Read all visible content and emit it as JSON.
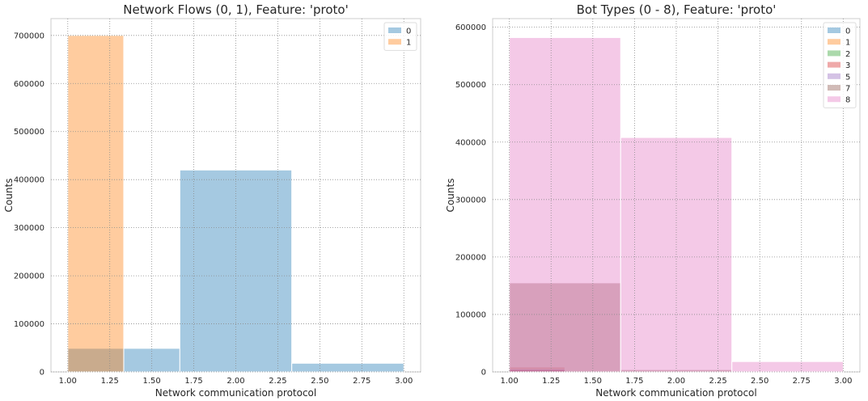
{
  "chart_data": [
    {
      "type": "bar",
      "title": "Network Flows (0, 1), Feature: 'proto'",
      "xlabel": "Network communication protocol",
      "ylabel": "Counts",
      "xlim": [
        0.9,
        3.1
      ],
      "ylim": [
        0,
        735000
      ],
      "xticks": [
        1.0,
        1.25,
        1.5,
        1.75,
        2.0,
        2.25,
        2.5,
        2.75,
        3.0
      ],
      "xtick_labels": [
        "1.00",
        "1.25",
        "1.50",
        "1.75",
        "2.00",
        "2.25",
        "2.50",
        "2.75",
        "3.00"
      ],
      "yticks": [
        0,
        100000,
        200000,
        300000,
        400000,
        500000,
        600000,
        700000
      ],
      "ytick_labels": [
        "0",
        "100000",
        "200000",
        "300000",
        "400000",
        "500000",
        "600000",
        "700000"
      ],
      "grid": true,
      "legend_position": "top-right",
      "bin_edges": [
        1.0,
        1.333,
        1.667,
        2.333,
        3.0
      ],
      "series": [
        {
          "name": "0",
          "color": "#1f77b4",
          "bins": [
            [
              1.0,
              1.333,
              49000
            ],
            [
              1.333,
              1.667,
              49000
            ],
            [
              1.667,
              2.333,
              420000
            ],
            [
              2.333,
              3.0,
              18000
            ]
          ]
        },
        {
          "name": "1",
          "color": "#ff7f0e",
          "bins": [
            [
              1.0,
              1.333,
              700000
            ]
          ]
        }
      ]
    },
    {
      "type": "bar",
      "title": "Bot Types (0 - 8), Feature: 'proto'",
      "xlabel": "Network communication protocol",
      "ylabel": "Counts",
      "xlim": [
        0.9,
        3.1
      ],
      "ylim": [
        0,
        615000
      ],
      "xticks": [
        1.0,
        1.25,
        1.5,
        1.75,
        2.0,
        2.25,
        2.5,
        2.75,
        3.0
      ],
      "xtick_labels": [
        "1.00",
        "1.25",
        "1.50",
        "1.75",
        "2.00",
        "2.25",
        "2.50",
        "2.75",
        "3.00"
      ],
      "yticks": [
        0,
        100000,
        200000,
        300000,
        400000,
        500000,
        600000
      ],
      "ytick_labels": [
        "0",
        "100000",
        "200000",
        "300000",
        "400000",
        "500000",
        "600000"
      ],
      "grid": true,
      "legend_position": "top-right",
      "series": [
        {
          "name": "0",
          "color": "#1f77b4",
          "bins": []
        },
        {
          "name": "1",
          "color": "#ff7f0e",
          "bins": []
        },
        {
          "name": "2",
          "color": "#2ca02c",
          "bins": []
        },
        {
          "name": "3",
          "color": "#d62728",
          "bins": [
            [
              1.0,
              1.333,
              8000
            ]
          ]
        },
        {
          "name": "5",
          "color": "#9467bd",
          "bins": [
            [
              1.0,
              1.333,
              5000
            ]
          ]
        },
        {
          "name": "7",
          "color": "#8c564b",
          "bins": [
            [
              1.0,
              1.667,
              155000
            ],
            [
              1.667,
              2.333,
              4000
            ]
          ]
        },
        {
          "name": "8",
          "color": "#e377c2",
          "bins": [
            [
              1.0,
              1.667,
              582000
            ],
            [
              1.667,
              2.333,
              408000
            ],
            [
              2.333,
              3.0,
              18000
            ]
          ]
        }
      ]
    }
  ]
}
